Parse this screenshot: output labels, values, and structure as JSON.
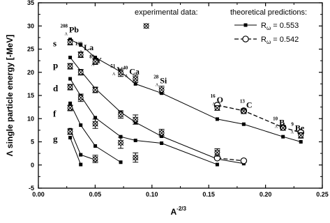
{
  "chart_data": {
    "type": "scatter",
    "xlabel_base": "A",
    "xlabel_exp": "-2/3",
    "ylabel": "Λ single particle energy  [-MeV]",
    "xlim": [
      0.0,
      0.25
    ],
    "ylim": [
      -5,
      35
    ],
    "x_ticks": [
      "0.00",
      "0.05",
      "0.10",
      "0.15",
      "0.20",
      "0.25"
    ],
    "y_ticks": [
      "-5",
      "0",
      "5",
      "10",
      "15",
      "20",
      "25",
      "30",
      "35"
    ],
    "legend_experimental": "experimental data:",
    "legend_theory_title": "theoretical predictions:",
    "legend_series": [
      {
        "label": "R",
        "sub": "ω",
        "value": "= 0.553",
        "style": "solid-square"
      },
      {
        "label": "R",
        "sub": "ω",
        "value": "= 0.542",
        "style": "dashed-circle"
      }
    ],
    "legend_experimental_marker": {
      "x": 0.095,
      "y": 30
    },
    "shell_labels": [
      {
        "text": "s",
        "y": 26.2
      },
      {
        "text": "p",
        "y": 21.5
      },
      {
        "text": "d",
        "y": 16.5
      },
      {
        "text": "f",
        "y": 11.0
      },
      {
        "text": "g",
        "y": 5.6
      }
    ],
    "nuclei_labels": [
      {
        "A": "208",
        "sym": "Pb",
        "x": 0.027,
        "y": 28.6
      },
      {
        "A": "139",
        "sym": "La",
        "x": 0.04,
        "y": 24.8
      },
      {
        "A": "89",
        "sym": "Y",
        "x": 0.0505,
        "y": 22.0
      },
      {
        "A": "51",
        "sym": "V",
        "x": 0.069,
        "y": 20.0
      },
      {
        "A": "40",
        "sym": "Ca",
        "x": 0.08,
        "y": 19.6
      },
      {
        "A": "28",
        "sym": "Si",
        "x": 0.107,
        "y": 17.6
      },
      {
        "A": "16",
        "sym": "O",
        "x": 0.157,
        "y": 13.5
      },
      {
        "A": "13",
        "sym": "C",
        "x": 0.183,
        "y": 12.4
      },
      {
        "A": "10",
        "sym": "B",
        "x": 0.212,
        "y": 8.6
      },
      {
        "A": "9",
        "sym": "Be",
        "x": 0.226,
        "y": 7.4
      }
    ],
    "theory_solid": [
      {
        "shell": "s",
        "x": [
          0.028,
          0.0373,
          0.0501,
          0.0725,
          0.0855,
          0.1085,
          0.1575,
          0.1808,
          0.2154,
          0.2311
        ],
        "y": [
          27.1,
          25.9,
          23.2,
          20.1,
          17.5,
          15.5,
          9.9,
          8.8,
          6.1,
          5.0
        ]
      },
      {
        "shell": "p",
        "x": [
          0.028,
          0.0373,
          0.0501,
          0.0725,
          0.0855,
          0.1085,
          0.1575,
          0.1808
        ],
        "y": [
          23.2,
          20.3,
          16.5,
          11.4,
          9.2,
          6.2,
          1.3,
          0.3
        ]
      },
      {
        "shell": "d",
        "x": [
          0.028,
          0.0373,
          0.0501,
          0.0725,
          0.0855,
          0.1085,
          0.1575
        ],
        "y": [
          18.6,
          14.9,
          10.2,
          6.1,
          5.3,
          4.7,
          0.1
        ]
      },
      {
        "shell": "f",
        "x": [
          0.028,
          0.0373,
          0.0501,
          0.0725
        ],
        "y": [
          13.3,
          8.6,
          4.1,
          0.6
        ]
      },
      {
        "shell": "g",
        "x": [
          0.028,
          0.0373,
          0.0501
        ],
        "y": [
          7.6,
          2.2,
          1.1
        ]
      },
      {
        "shell": "h",
        "x": [
          0.028,
          0.0373
        ],
        "y": [
          5.9,
          0.1
        ]
      }
    ],
    "theory_dashed": {
      "x": [
        0.1575,
        0.1808,
        0.2154,
        0.2311
      ],
      "y": [
        12.9,
        11.7,
        8.1,
        7.0
      ]
    },
    "theory_dashed_lower": {
      "x": [
        0.1575,
        0.1808
      ],
      "y": [
        1.5,
        0.9
      ]
    },
    "experimental": {
      "x": [
        0.028,
        0.028,
        0.028,
        0.028,
        0.028,
        0.0373,
        0.0373,
        0.0373,
        0.0501,
        0.0501,
        0.0501,
        0.0501,
        0.0725,
        0.0725,
        0.0725,
        0.0855,
        0.0855,
        0.0855,
        0.1085,
        0.1085,
        0.1575,
        0.1575,
        0.1808,
        0.2154,
        0.2311
      ],
      "y": [
        26.5,
        21.3,
        16.8,
        12.3,
        7.2,
        23.8,
        20.0,
        14.5,
        22.3,
        16.2,
        8.9,
        1.3,
        19.9,
        10.9,
        4.8,
        18.6,
        9.8,
        1.6,
        16.2,
        6.9,
        12.3,
        2.7,
        11.6,
        8.0,
        6.4
      ],
      "err": [
        0.6,
        0.6,
        0.6,
        0.6,
        0.6,
        0.6,
        0.6,
        0.8,
        0.6,
        0.6,
        1.0,
        0.8,
        0.8,
        0.8,
        1.2,
        0.8,
        1.0,
        1.0,
        0.8,
        0.8,
        0.5,
        0.8,
        0.5,
        0.5,
        0.6
      ]
    }
  }
}
